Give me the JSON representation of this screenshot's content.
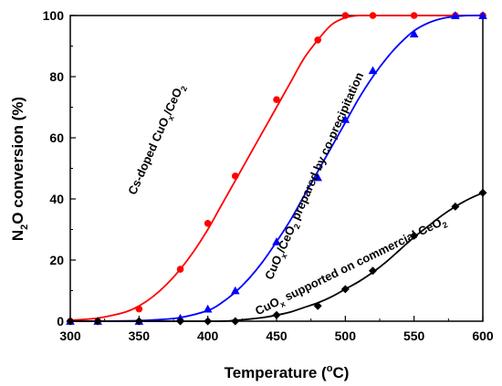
{
  "chart_data": {
    "type": "scatter",
    "xlim": [
      300,
      600
    ],
    "ylim": [
      0,
      100
    ],
    "x_ticks": [
      "300",
      "350",
      "400",
      "450",
      "500",
      "550",
      "600"
    ],
    "y_ticks": [
      "0",
      "20",
      "40",
      "60",
      "80",
      "100"
    ],
    "ylabel_parts": [
      "N",
      "2",
      "O conversion (%)"
    ],
    "xlabel_parts": [
      "Temperature (",
      "o",
      "C)"
    ],
    "series": [
      {
        "name_parts": [
          [
            "Cs-doped CuO",
            "n"
          ],
          [
            "x",
            "sub"
          ],
          [
            "/CeO",
            "n"
          ],
          [
            "2",
            "sub"
          ]
        ],
        "color": "#ff0000",
        "marker": "circle",
        "x": [
          300,
          320,
          350,
          380,
          400,
          420,
          450,
          480,
          500,
          520,
          550,
          580,
          600
        ],
        "y": [
          0,
          0,
          4,
          17,
          32,
          47.5,
          72.5,
          92,
          100,
          100,
          100,
          100,
          100
        ],
        "fit_x": [
          300,
          320,
          340,
          350,
          360,
          370,
          380,
          390,
          400,
          410,
          420,
          430,
          440,
          450,
          460,
          470,
          480,
          490,
          500,
          510,
          520,
          540,
          560,
          580,
          600
        ],
        "fit_y": [
          0.3,
          1,
          3,
          5,
          8,
          12,
          17,
          23,
          30,
          38,
          46,
          54,
          62,
          70,
          78,
          86,
          92,
          97,
          99.3,
          100,
          100,
          100,
          100,
          100,
          100
        ],
        "label_x": 365,
        "label_y": 59,
        "label_angle": -66
      },
      {
        "name_parts": [
          [
            "CuO",
            "n"
          ],
          [
            "x",
            "sub"
          ],
          [
            "/CeO",
            "n"
          ],
          [
            "2",
            "sub"
          ],
          [
            " prepared by co-precipitation",
            "n"
          ]
        ],
        "color": "#0000ff",
        "marker": "triangle",
        "x": [
          300,
          320,
          350,
          380,
          400,
          420,
          450,
          480,
          500,
          520,
          550,
          580,
          600
        ],
        "y": [
          0,
          0,
          0,
          1,
          4,
          10,
          26,
          47,
          66,
          82,
          94,
          100,
          100
        ],
        "fit_x": [
          300,
          340,
          360,
          380,
          400,
          410,
          420,
          430,
          440,
          450,
          460,
          470,
          480,
          490,
          500,
          510,
          520,
          530,
          540,
          550,
          560,
          570,
          580,
          590,
          600
        ],
        "fit_y": [
          0,
          0.1,
          0.4,
          1.2,
          3.5,
          6,
          9.5,
          14,
          19.5,
          26,
          33,
          41,
          49,
          57,
          65,
          73,
          80,
          86,
          91,
          95,
          97.5,
          99,
          99.7,
          100,
          100
        ],
        "label_x": 480,
        "label_y": 47,
        "label_angle": -66
      },
      {
        "name_parts": [
          [
            "CuO",
            "n"
          ],
          [
            "x",
            "sub"
          ],
          [
            " supported on commercial CeO",
            "n"
          ],
          [
            "2",
            "sub"
          ]
        ],
        "color": "#000000",
        "marker": "diamond",
        "x": [
          300,
          320,
          350,
          380,
          400,
          420,
          450,
          480,
          500,
          520,
          550,
          580,
          600
        ],
        "y": [
          0,
          0,
          0,
          0,
          0,
          0,
          2,
          5,
          10.5,
          16.5,
          28,
          37.5,
          42
        ],
        "fit_x": [
          300,
          400,
          420,
          440,
          450,
          460,
          470,
          480,
          490,
          500,
          510,
          520,
          530,
          540,
          550,
          560,
          570,
          580,
          590,
          600
        ],
        "fit_y": [
          0,
          0,
          0.3,
          1.2,
          2,
          3,
          4.5,
          6,
          8,
          10.5,
          13,
          16,
          19.5,
          23.5,
          27.5,
          31,
          34.5,
          37.5,
          40,
          42
        ],
        "label_x": 505,
        "label_y": 17,
        "label_angle": -26
      }
    ]
  }
}
